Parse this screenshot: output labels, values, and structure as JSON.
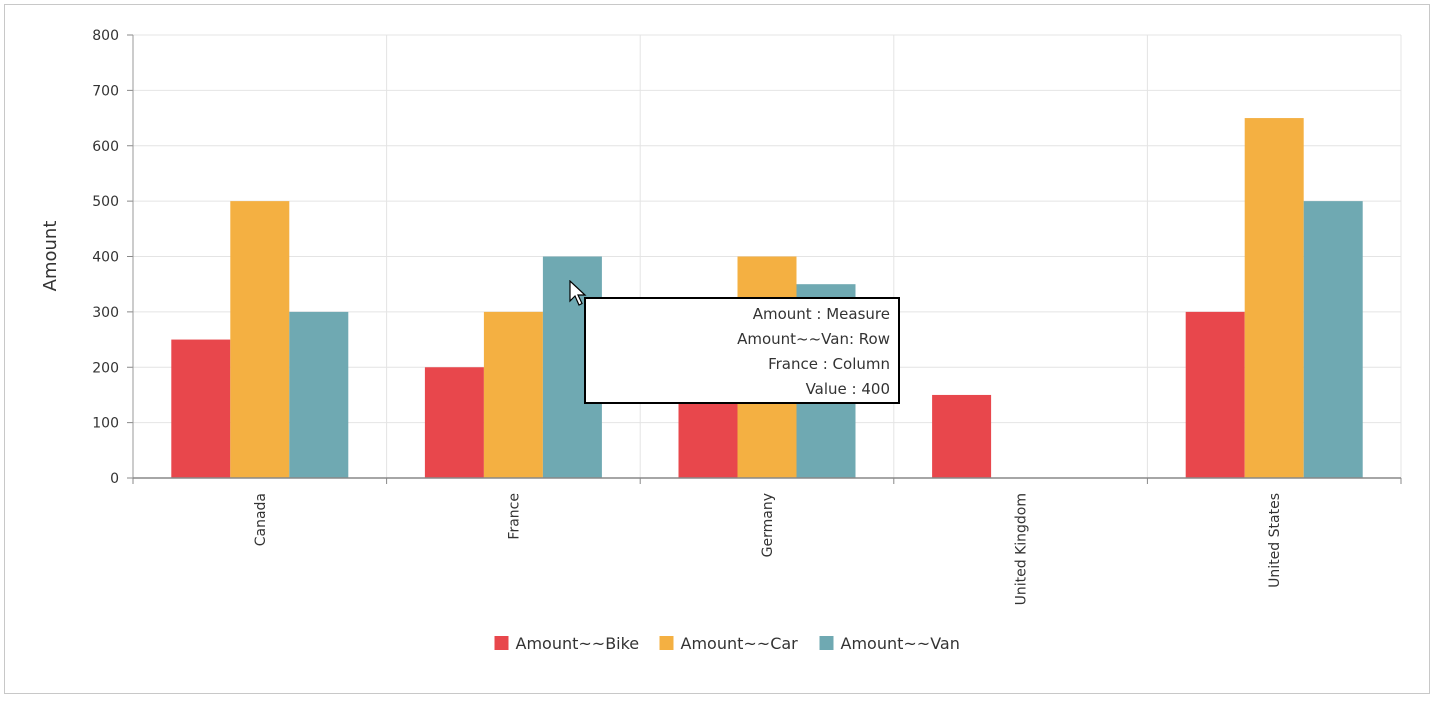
{
  "chart_data": {
    "type": "bar",
    "categories": [
      "Canada",
      "France",
      "Germany",
      "United Kingdom",
      "United States"
    ],
    "series": [
      {
        "name": "Amount~~Bike",
        "color": "#e8474c",
        "values": [
          250,
          200,
          200,
          150,
          300
        ]
      },
      {
        "name": "Amount~~Car",
        "color": "#f4b042",
        "values": [
          500,
          300,
          400,
          0,
          650
        ]
      },
      {
        "name": "Amount~~Van",
        "color": "#6fa9b2",
        "values": [
          300,
          400,
          350,
          0,
          500
        ]
      }
    ],
    "ylabel": "Amount",
    "xlabel": "",
    "ylim": [
      0,
      800
    ],
    "yticks": [
      0,
      100,
      200,
      300,
      400,
      500,
      600,
      700,
      800
    ],
    "grid": true,
    "legend_position": "bottom-center"
  },
  "tooltip": {
    "line1": "Amount : Measure",
    "line2": "Amount~~Van: Row",
    "line3": "France : Column",
    "line4": "Value : 400"
  }
}
